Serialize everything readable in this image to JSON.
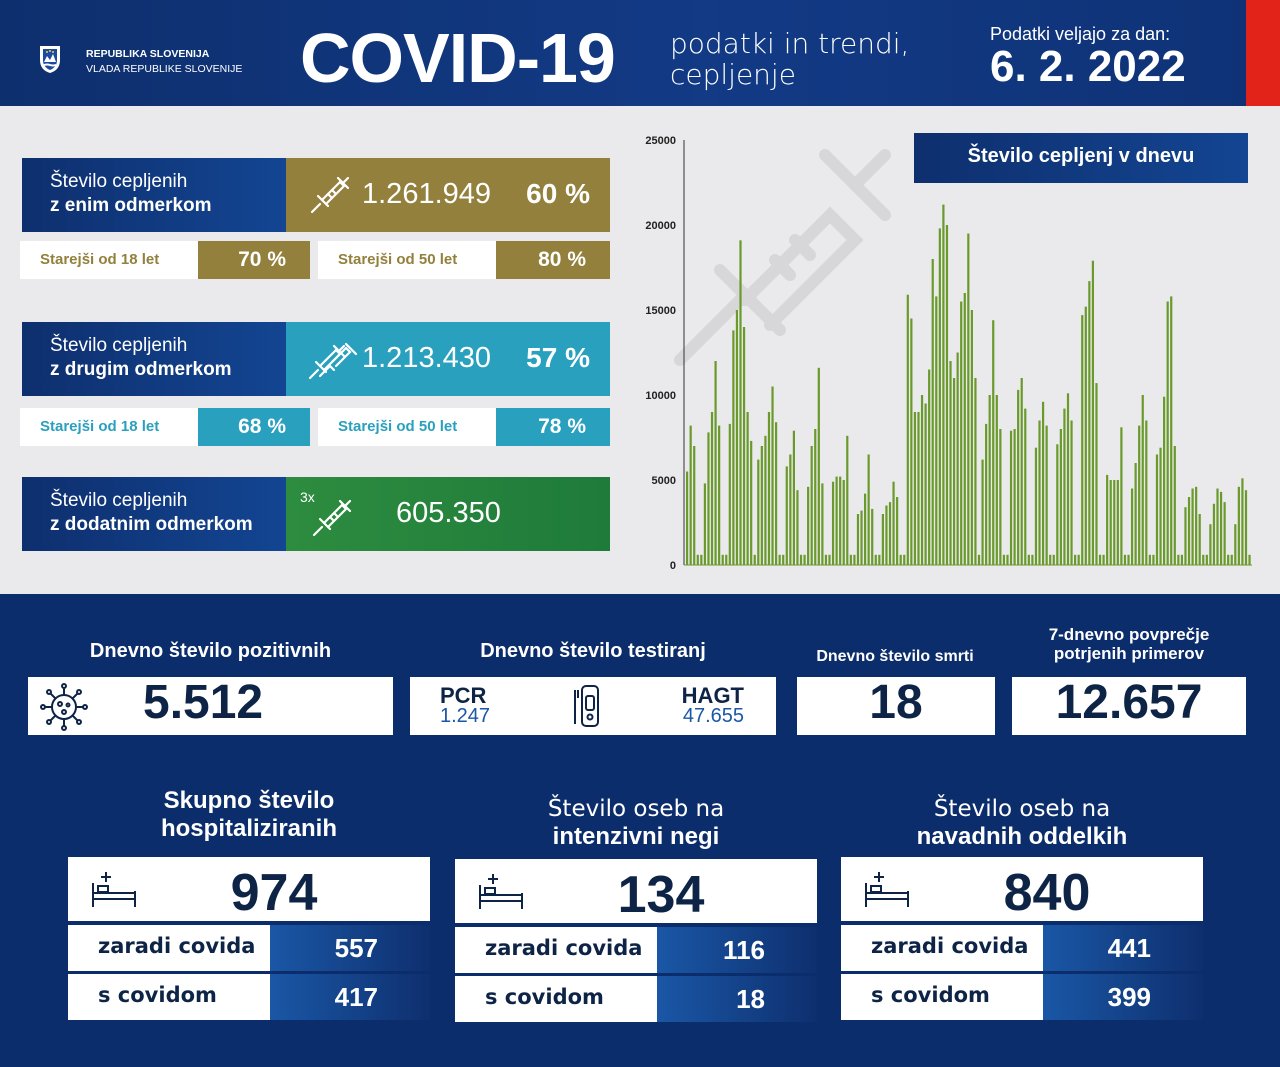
{
  "header": {
    "gov_line1": "REPUBLIKA SLOVENIJA",
    "gov_line2": "VLADA REPUBLIKE SLOVENIJE",
    "title": "COVID-19",
    "subtitle_line1": "podatki in trendi,",
    "subtitle_line2": "cepljenje",
    "valid_label": "Podatki veljajo za dan:",
    "valid_date": "6. 2. 2022"
  },
  "vaccination": {
    "first": {
      "label_line1": "Število cepljenih",
      "label_line2": "z enim odmerkom",
      "value": "1.261.949",
      "pct": "60 %",
      "sub18_label": "Starejši od 18 let",
      "sub18_value": "70 %",
      "sub50_label": "Starejši od 50 let",
      "sub50_value": "80 %"
    },
    "second": {
      "label_line1": "Število cepljenih",
      "label_line2": "z drugim odmerkom",
      "value": "1.213.430",
      "pct": "57 %",
      "sub18_label": "Starejši od 18 let",
      "sub18_value": "68 %",
      "sub50_label": "Starejši od 50 let",
      "sub50_value": "78 %"
    },
    "booster": {
      "label_line1": "Število cepljenih",
      "label_line2": "z dodatnim odmerkom",
      "badge": "3x",
      "value": "605.350"
    }
  },
  "chart_data": {
    "type": "bar",
    "title": "Število cepljenj v dnevu",
    "ylim": [
      0,
      25000
    ],
    "yticks": [
      "0",
      "5000",
      "10000",
      "15000",
      "20000",
      "25000"
    ],
    "grid": false,
    "bar_color": "#6a9a2c",
    "values": [
      5500,
      8200,
      7000,
      600,
      600,
      4800,
      7800,
      9000,
      12000,
      8200,
      600,
      600,
      8300,
      13800,
      15000,
      19100,
      14000,
      9000,
      7300,
      600,
      6200,
      7000,
      7600,
      9000,
      10500,
      8400,
      600,
      600,
      5800,
      6500,
      7900,
      4400,
      600,
      600,
      4600,
      7000,
      8000,
      11600,
      4800,
      600,
      600,
      4900,
      5200,
      5200,
      5000,
      7600,
      600,
      600,
      3000,
      3200,
      4200,
      6500,
      3300,
      600,
      600,
      3000,
      3500,
      3700,
      4900,
      4000,
      600,
      600,
      15900,
      14500,
      9000,
      9000,
      10000,
      9500,
      11500,
      18000,
      15800,
      19800,
      21200,
      20000,
      12000,
      11000,
      12500,
      15500,
      16000,
      19500,
      15000,
      11000,
      600,
      6200,
      8300,
      10000,
      14400,
      10000,
      8000,
      600,
      600,
      7900,
      8000,
      10300,
      11000,
      9200,
      600,
      600,
      6900,
      8500,
      9600,
      8200,
      600,
      600,
      7100,
      8000,
      9200,
      10100,
      8500,
      600,
      600,
      14700,
      15200,
      16700,
      17900,
      10700,
      600,
      600,
      5300,
      5000,
      5000,
      5000,
      8100,
      600,
      600,
      4500,
      6000,
      8200,
      10000,
      8500,
      600,
      600,
      6500,
      6900,
      9900,
      15500,
      15800,
      7000,
      600,
      600,
      3400,
      4000,
      4500,
      4600,
      3000,
      600,
      600,
      2400,
      3600,
      4500,
      4300,
      3700,
      600,
      600,
      2400,
      4600,
      5100,
      4400,
      600
    ]
  },
  "stats": {
    "positive": {
      "title": "Dnevno število pozitivnih",
      "value": "5.512"
    },
    "tests": {
      "title": "Dnevno število testiranj",
      "pcr_label": "PCR",
      "pcr_value": "1.247",
      "hagt_label": "HAGT",
      "hagt_value": "47.655"
    },
    "deaths": {
      "title": "Dnevno število smrti",
      "value": "18"
    },
    "avg7": {
      "title_line1": "7-dnevno povprečje",
      "title_line2": "potrjenih primerov",
      "value": "12.657"
    }
  },
  "hospital": {
    "total": {
      "title_line1": "Skupno število",
      "title_line2": "hospitaliziranih",
      "value": "974",
      "covid_label": "zaradi covida",
      "covid_value": "557",
      "with_label": "s covidom",
      "with_value": "417"
    },
    "icu": {
      "title_line1": "Število oseb na",
      "title_line2": "intenzivni negi",
      "value": "134",
      "covid_label": "zaradi covida",
      "covid_value": "116",
      "with_label": "s covidom",
      "with_value": "18"
    },
    "ward": {
      "title_line1": "Število oseb na",
      "title_line2": "navadnih oddelkih",
      "value": "840",
      "covid_label": "zaradi covida",
      "covid_value": "441",
      "with_label": "s covidom",
      "with_value": "399"
    }
  }
}
